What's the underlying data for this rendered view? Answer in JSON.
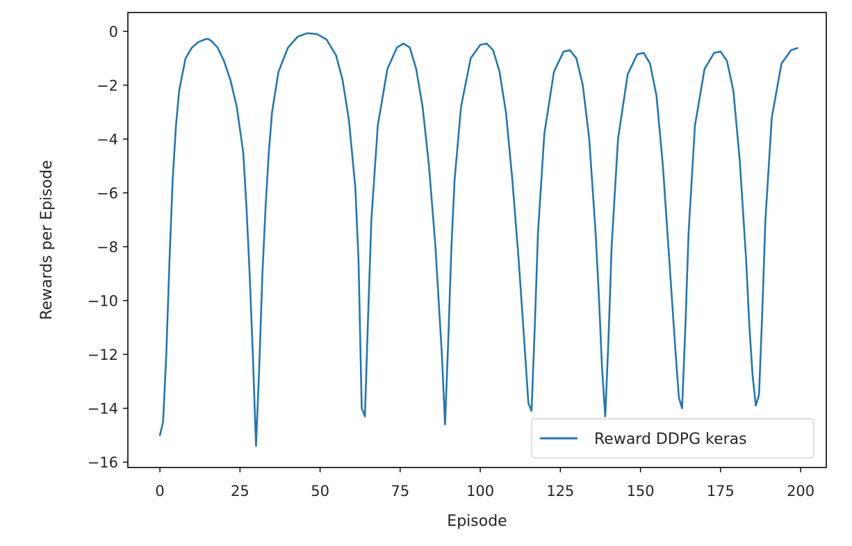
{
  "chart_data": {
    "type": "line",
    "title": "",
    "xlabel": "Episode",
    "ylabel": "Rewards per Episode",
    "xlim": [
      -10,
      208
    ],
    "ylim": [
      -16.2,
      0.7
    ],
    "xticks": [
      0,
      25,
      50,
      75,
      100,
      125,
      150,
      175,
      200
    ],
    "xtick_labels": [
      "0",
      "25",
      "50",
      "75",
      "100",
      "125",
      "150",
      "175",
      "200"
    ],
    "yticks": [
      0,
      -2,
      -4,
      -6,
      -8,
      -10,
      -12,
      -14,
      -16
    ],
    "ytick_labels": [
      "0",
      "−2",
      "−4",
      "−6",
      "−8",
      "−10",
      "−12",
      "−14",
      "−16"
    ],
    "grid": false,
    "legend_position": "lower-right",
    "series": [
      {
        "name": "Reward DDPG keras",
        "color": "#1f77b4",
        "x": [
          0,
          1,
          2,
          3,
          4,
          5,
          6,
          8,
          10,
          12,
          14,
          15,
          16,
          18,
          20,
          22,
          24,
          26,
          27,
          28,
          29,
          30,
          31,
          32,
          33,
          34,
          35,
          37,
          40,
          43,
          46,
          49,
          52,
          55,
          57,
          59,
          61,
          62,
          63,
          64,
          65,
          66,
          68,
          71,
          74,
          76,
          78,
          80,
          82,
          84,
          86,
          88,
          89,
          90,
          91,
          92,
          94,
          97,
          100,
          102,
          104,
          106,
          108,
          110,
          112,
          114,
          115,
          116,
          117,
          118,
          120,
          123,
          126,
          128,
          130,
          132,
          134,
          136,
          137,
          138,
          139,
          140,
          141,
          143,
          146,
          149,
          151,
          153,
          155,
          157,
          159,
          161,
          162,
          163,
          164,
          165,
          167,
          170,
          173,
          175,
          177,
          179,
          181,
          183,
          184,
          185,
          186,
          187,
          188,
          189,
          191,
          194,
          197,
          199
        ],
        "values": [
          -15.0,
          -14.5,
          -12.0,
          -8.5,
          -5.5,
          -3.5,
          -2.2,
          -1.0,
          -0.6,
          -0.4,
          -0.3,
          -0.28,
          -0.35,
          -0.6,
          -1.1,
          -1.8,
          -2.8,
          -4.5,
          -6.5,
          -9.0,
          -12.0,
          -15.4,
          -12.5,
          -9.0,
          -6.5,
          -4.5,
          -3.0,
          -1.5,
          -0.6,
          -0.2,
          -0.07,
          -0.1,
          -0.3,
          -0.9,
          -1.8,
          -3.3,
          -5.8,
          -8.5,
          -14.0,
          -14.3,
          -10.5,
          -7.0,
          -3.5,
          -1.4,
          -0.6,
          -0.45,
          -0.6,
          -1.4,
          -2.8,
          -5.0,
          -8.0,
          -12.0,
          -14.6,
          -11.5,
          -8.0,
          -5.5,
          -2.8,
          -1.0,
          -0.5,
          -0.45,
          -0.7,
          -1.5,
          -3.0,
          -5.5,
          -8.5,
          -12.0,
          -13.8,
          -14.1,
          -11.0,
          -7.5,
          -3.8,
          -1.5,
          -0.75,
          -0.7,
          -1.0,
          -2.0,
          -4.0,
          -7.5,
          -9.8,
          -12.5,
          -14.3,
          -11.5,
          -8.0,
          -4.0,
          -1.6,
          -0.85,
          -0.8,
          -1.2,
          -2.4,
          -5.0,
          -8.5,
          -12.0,
          -13.6,
          -14.0,
          -11.0,
          -7.5,
          -3.5,
          -1.4,
          -0.8,
          -0.75,
          -1.1,
          -2.2,
          -4.8,
          -8.5,
          -11.0,
          -12.8,
          -13.9,
          -13.5,
          -10.5,
          -7.0,
          -3.2,
          -1.2,
          -0.7,
          -0.62
        ]
      }
    ]
  }
}
